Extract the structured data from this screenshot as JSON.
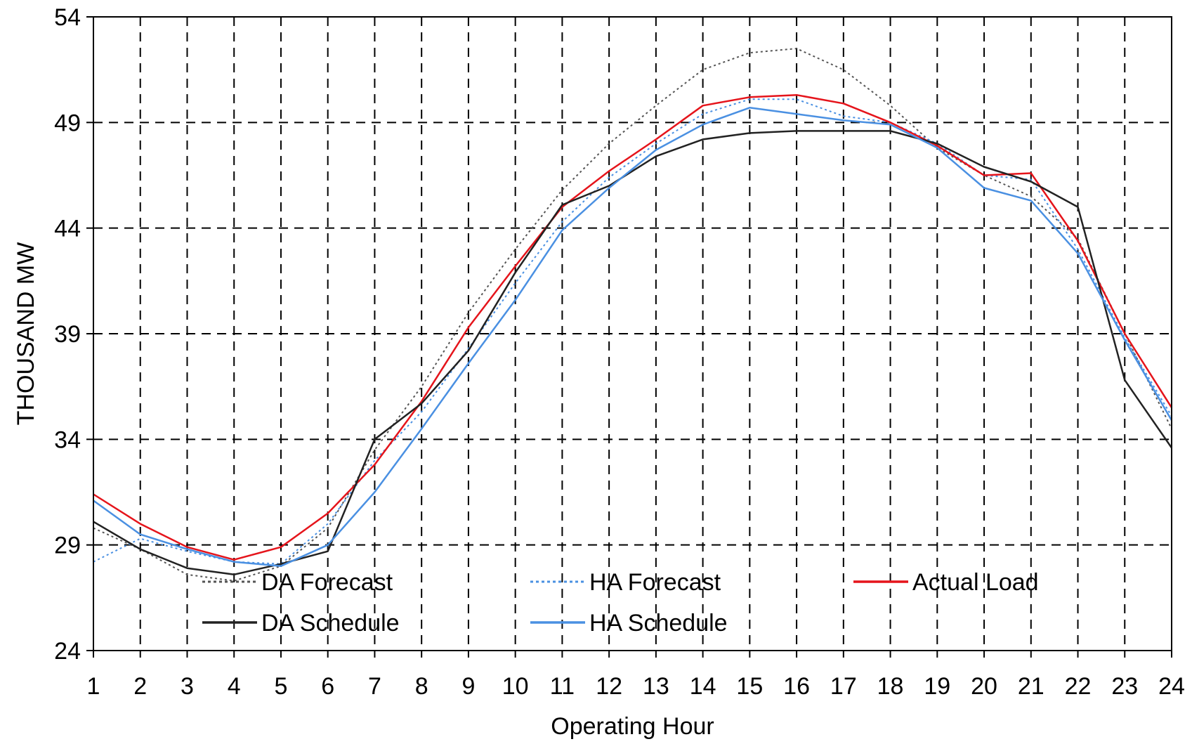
{
  "chart_data": {
    "type": "line",
    "title": "",
    "xlabel": "Operating Hour",
    "ylabel": "THOUSAND MW",
    "xlim": [
      1,
      24
    ],
    "ylim": [
      24,
      54
    ],
    "x": [
      1,
      2,
      3,
      4,
      5,
      6,
      7,
      8,
      9,
      10,
      11,
      12,
      13,
      14,
      15,
      16,
      17,
      18,
      19,
      20,
      21,
      22,
      23,
      24
    ],
    "x_ticks": [
      "1",
      "2",
      "3",
      "4",
      "5",
      "6",
      "7",
      "8",
      "9",
      "10",
      "11",
      "12",
      "13",
      "14",
      "15",
      "16",
      "17",
      "18",
      "19",
      "20",
      "21",
      "22",
      "23",
      "24"
    ],
    "y_ticks": [
      24,
      29,
      34,
      39,
      44,
      49,
      54
    ],
    "y_tick_labels": [
      "24",
      "29",
      "34",
      "39",
      "44",
      "49",
      "54"
    ],
    "grid": true,
    "legend_position": "bottom-inside",
    "series": [
      {
        "name": "DA Forecast",
        "color": "#555555",
        "style": "dotted",
        "values": [
          29.8,
          28.8,
          27.6,
          27.3,
          28.0,
          29.8,
          33.5,
          36.5,
          40.0,
          43.0,
          45.8,
          48.0,
          49.8,
          51.5,
          52.3,
          52.5,
          51.5,
          49.8,
          47.8,
          46.5,
          45.5,
          43.5,
          39.0,
          34.5
        ]
      },
      {
        "name": "HA Forecast",
        "color": "#4A90E2",
        "style": "dotted",
        "values": [
          28.2,
          29.3,
          28.7,
          28.2,
          28.1,
          30.0,
          33.0,
          35.3,
          38.3,
          41.4,
          44.3,
          46.4,
          48.0,
          49.4,
          50.1,
          50.1,
          49.3,
          49.0,
          48.0,
          46.5,
          46.3,
          43.0,
          38.8,
          35.1
        ]
      },
      {
        "name": "Actual Load",
        "color": "#E5141B",
        "style": "solid",
        "values": [
          31.4,
          30.0,
          28.9,
          28.3,
          28.9,
          30.5,
          32.8,
          35.8,
          39.3,
          42.2,
          45.0,
          46.7,
          48.2,
          49.8,
          50.2,
          50.3,
          49.9,
          49.0,
          47.9,
          46.5,
          46.6,
          43.4,
          39.0,
          35.5
        ]
      },
      {
        "name": "DA Schedule",
        "color": "#222222",
        "style": "solid",
        "values": [
          30.1,
          28.8,
          27.9,
          27.6,
          28.1,
          28.7,
          34.0,
          35.7,
          38.2,
          41.9,
          45.1,
          46.0,
          47.4,
          48.2,
          48.5,
          48.6,
          48.6,
          48.6,
          48.0,
          46.9,
          46.2,
          45.0,
          36.8,
          33.6
        ]
      },
      {
        "name": "HA Schedule",
        "color": "#4A90E2",
        "style": "solid",
        "values": [
          31.1,
          29.5,
          28.8,
          28.2,
          28.0,
          29.0,
          31.5,
          34.5,
          37.6,
          40.6,
          43.9,
          45.9,
          47.7,
          48.9,
          49.7,
          49.4,
          49.1,
          48.9,
          47.8,
          45.9,
          45.3,
          42.8,
          38.7,
          34.9
        ]
      }
    ]
  }
}
